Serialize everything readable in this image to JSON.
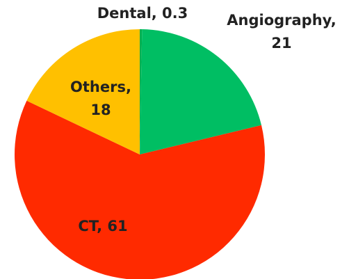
{
  "chart_data": {
    "type": "pie",
    "values": [
      0.3,
      21,
      61,
      18
    ],
    "value_labels": [
      "Dental, 0.3",
      "Angiography, 21",
      "CT, 61",
      "Others, 18"
    ],
    "colors": [
      "#00b050",
      "#00be63",
      "#ff2a00",
      "#ffc000"
    ]
  }
}
